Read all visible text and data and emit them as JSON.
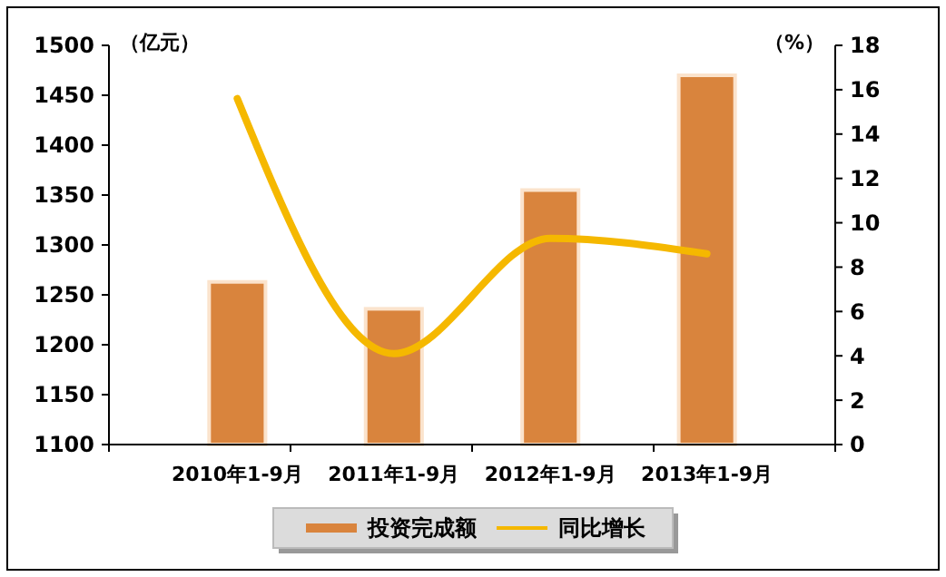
{
  "chart_data": {
    "type": "bar",
    "categories": [
      "2010年1-9月",
      "2011年1-9月",
      "2012年1-9月",
      "2013年1-9月"
    ],
    "ylabel": "（亿元）",
    "y2label": "（%）",
    "series": [
      {
        "name": "投资完成额",
        "color": "#d9843d",
        "values": [
          1263,
          1236,
          1355,
          1470
        ]
      },
      {
        "name": "同比增长",
        "type": "line",
        "axis": "y2",
        "color": "#f5b800",
        "values": [
          15.6,
          4.1,
          9.3,
          8.6
        ]
      }
    ],
    "ylim": [
      1100,
      1500
    ],
    "yticks": [
      1100,
      1150,
      1200,
      1250,
      1300,
      1350,
      1400,
      1450,
      1500
    ],
    "y2lim": [
      0,
      18
    ],
    "y2ticks": [
      0,
      2,
      4,
      6,
      8,
      10,
      12,
      14,
      16,
      18
    ],
    "legend": "bottom",
    "grid": false,
    "marker": "none"
  }
}
